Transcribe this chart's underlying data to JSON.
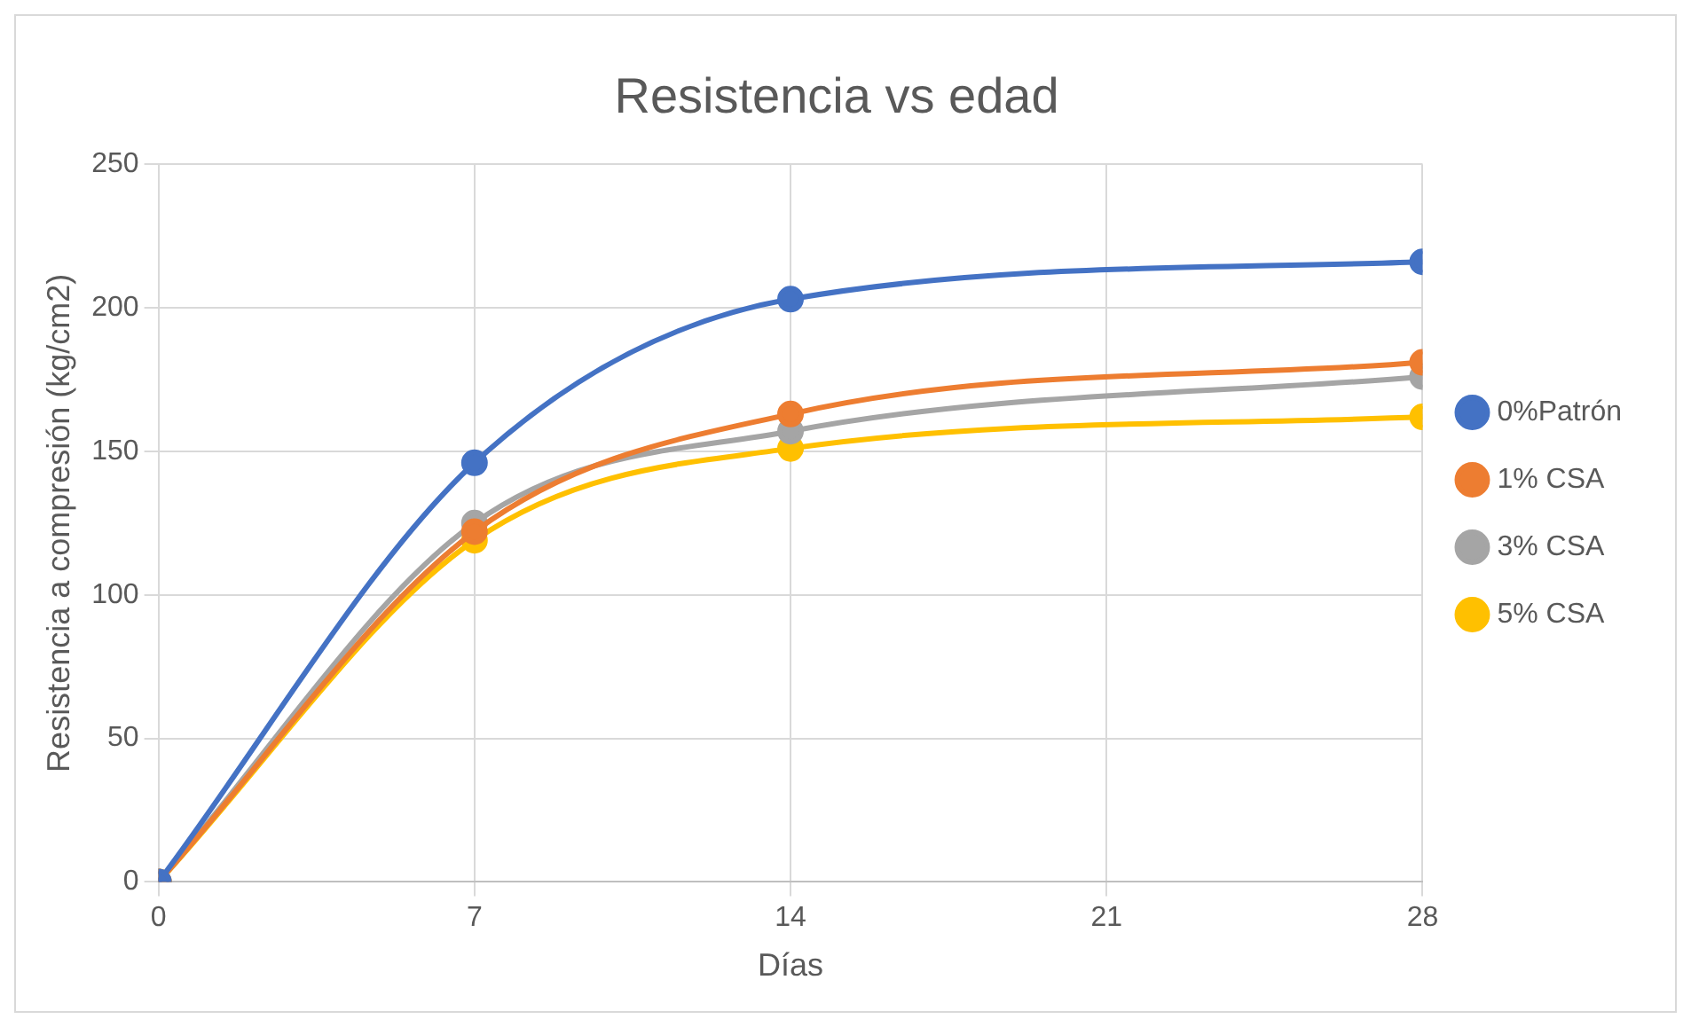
{
  "chart_data": {
    "type": "line",
    "title": "Resistencia vs edad",
    "xlabel": "Días",
    "ylabel": "Resistencia a compresión (kg/cm2)",
    "x": [
      0,
      7,
      14,
      28
    ],
    "series": [
      {
        "name": "0%Patrón",
        "color": "#4472c4",
        "values": [
          0,
          146,
          203,
          216
        ]
      },
      {
        "name": "1% CSA",
        "color": "#ed7d31",
        "values": [
          0,
          122,
          163,
          181
        ]
      },
      {
        "name": "3% CSA",
        "color": "#a5a5a5",
        "values": [
          0,
          125,
          157,
          176
        ]
      },
      {
        "name": "5% CSA",
        "color": "#ffc000",
        "values": [
          0,
          119,
          151,
          162
        ]
      }
    ],
    "xlim": [
      0,
      28
    ],
    "xticks": [
      0,
      7,
      14,
      21,
      28
    ],
    "ylim": [
      0,
      250
    ],
    "yticks": [
      0,
      50,
      100,
      150,
      200,
      250
    ],
    "grid": true,
    "legend": "right",
    "marker": "circle",
    "line_style": "solid"
  }
}
